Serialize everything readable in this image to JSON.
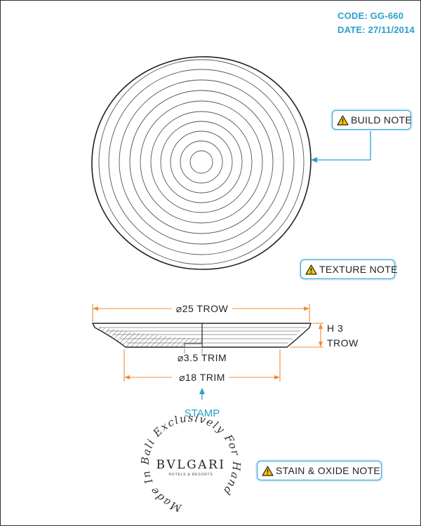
{
  "header": {
    "code": "CODE: GG-660",
    "date": "DATE: 27/11/2014"
  },
  "notes": {
    "build": "BUILD NOTE",
    "texture": "TEXTURE NOTE",
    "stain": "STAIN & OXIDE NOTE"
  },
  "dimensions": {
    "top_diameter": "⌀25 TROW",
    "height_line1": "H 3",
    "height_line2": "TROW",
    "trim_inner": "⌀3.5 TRIM",
    "trim_outer": "⌀18 TRIM"
  },
  "stamp": {
    "label": "STAMP",
    "brand": "BVLGARI",
    "sub": "HOTELS & RESORTS",
    "ring_text": "Made In Bali Exclusively For Hand"
  },
  "colors": {
    "accent": "#2aa0cf",
    "dimension": "#ef8c34",
    "warning": "#f5c400",
    "line": "#333333"
  },
  "icons": [
    "warning-icon",
    "arrow-icon"
  ]
}
